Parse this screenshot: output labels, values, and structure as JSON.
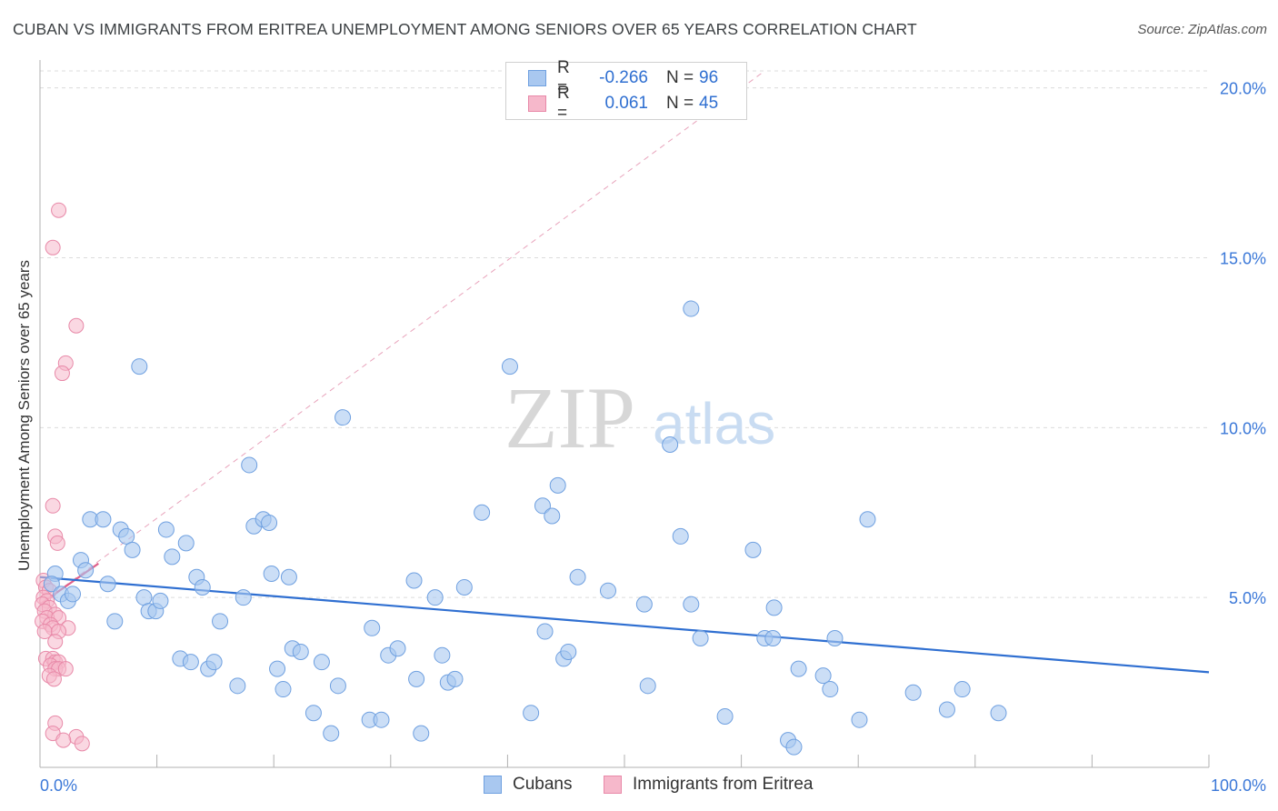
{
  "title": "CUBAN VS IMMIGRANTS FROM ERITREA UNEMPLOYMENT AMONG SENIORS OVER 65 YEARS CORRELATION CHART",
  "source": "Source: ZipAtlas.com",
  "watermark": {
    "zip": "ZIP",
    "atlas": "atlas"
  },
  "colors": {
    "cubans_fill": "#a9c8f0",
    "cubans_stroke": "#6fa0e0",
    "cubans_line": "#2f6fd1",
    "eritrea_fill": "#f6b8cb",
    "eritrea_stroke": "#e889a8",
    "eritrea_line": "#e0608a",
    "axis_text": "#3b78d8",
    "grid": "#dcdcdc"
  },
  "legend": {
    "rows": [
      {
        "r_label": "R =",
        "r_value": "-0.266",
        "n_label": "N =",
        "n_value": "96"
      },
      {
        "r_label": "R =",
        "r_value": "0.061",
        "n_label": "N =",
        "n_value": "45"
      }
    ]
  },
  "bottom_legend": {
    "cubans": "Cubans",
    "eritrea": "Immigrants from Eritrea"
  },
  "chart_data": {
    "type": "scatter",
    "xlabel": "",
    "ylabel": "Unemployment Among Seniors over 65 years",
    "xlim": [
      0,
      100
    ],
    "ylim": [
      0,
      20.5
    ],
    "x_tick_labels": [
      "0.0%",
      "100.0%"
    ],
    "y_ticks": [
      5,
      10,
      15,
      20
    ],
    "y_tick_labels": [
      "5.0%",
      "10.0%",
      "15.0%",
      "20.0%"
    ],
    "grid": true,
    "legend_position": "top-center",
    "series": [
      {
        "name": "Cubans",
        "trend": {
          "x": [
            0,
            100
          ],
          "y": [
            5.6,
            2.8
          ]
        },
        "points": [
          [
            1.3,
            5.7
          ],
          [
            1.0,
            5.4
          ],
          [
            1.8,
            5.1
          ],
          [
            2.4,
            4.9
          ],
          [
            2.8,
            5.1
          ],
          [
            3.5,
            6.1
          ],
          [
            3.9,
            5.8
          ],
          [
            4.3,
            7.3
          ],
          [
            5.4,
            7.3
          ],
          [
            5.8,
            5.4
          ],
          [
            6.4,
            4.3
          ],
          [
            6.9,
            7.0
          ],
          [
            7.4,
            6.8
          ],
          [
            7.9,
            6.4
          ],
          [
            8.5,
            11.8
          ],
          [
            8.9,
            5.0
          ],
          [
            9.3,
            4.6
          ],
          [
            9.9,
            4.6
          ],
          [
            10.3,
            4.9
          ],
          [
            10.8,
            7.0
          ],
          [
            11.3,
            6.2
          ],
          [
            12.0,
            3.2
          ],
          [
            12.5,
            6.6
          ],
          [
            12.9,
            3.1
          ],
          [
            13.4,
            5.6
          ],
          [
            13.9,
            5.3
          ],
          [
            14.4,
            2.9
          ],
          [
            14.9,
            3.1
          ],
          [
            15.4,
            4.3
          ],
          [
            16.9,
            2.4
          ],
          [
            17.4,
            5.0
          ],
          [
            17.9,
            8.9
          ],
          [
            18.3,
            7.1
          ],
          [
            19.1,
            7.3
          ],
          [
            19.6,
            7.2
          ],
          [
            19.8,
            5.7
          ],
          [
            20.3,
            2.9
          ],
          [
            20.8,
            2.3
          ],
          [
            21.3,
            5.6
          ],
          [
            21.6,
            3.5
          ],
          [
            22.3,
            3.4
          ],
          [
            23.4,
            1.6
          ],
          [
            24.1,
            3.1
          ],
          [
            24.9,
            1.0
          ],
          [
            25.5,
            2.4
          ],
          [
            25.9,
            10.3
          ],
          [
            28.2,
            1.4
          ],
          [
            28.4,
            4.1
          ],
          [
            29.2,
            1.4
          ],
          [
            29.8,
            3.3
          ],
          [
            30.6,
            3.5
          ],
          [
            32.0,
            5.5
          ],
          [
            32.2,
            2.6
          ],
          [
            32.6,
            1.0
          ],
          [
            33.8,
            5.0
          ],
          [
            34.4,
            3.3
          ],
          [
            34.9,
            2.5
          ],
          [
            35.5,
            2.6
          ],
          [
            36.3,
            5.3
          ],
          [
            37.8,
            7.5
          ],
          [
            40.2,
            11.8
          ],
          [
            42.0,
            1.6
          ],
          [
            43.0,
            7.7
          ],
          [
            43.2,
            4.0
          ],
          [
            43.8,
            7.4
          ],
          [
            44.3,
            8.3
          ],
          [
            44.8,
            3.2
          ],
          [
            45.2,
            3.4
          ],
          [
            46.0,
            5.6
          ],
          [
            48.6,
            5.2
          ],
          [
            51.7,
            4.8
          ],
          [
            52.0,
            2.4
          ],
          [
            53.9,
            9.5
          ],
          [
            54.8,
            6.8
          ],
          [
            55.7,
            4.8
          ],
          [
            56.5,
            3.8
          ],
          [
            55.7,
            13.5
          ],
          [
            58.6,
            1.5
          ],
          [
            61.0,
            6.4
          ],
          [
            62.0,
            3.8
          ],
          [
            62.7,
            3.8
          ],
          [
            62.8,
            4.7
          ],
          [
            64.0,
            0.8
          ],
          [
            64.5,
            0.6
          ],
          [
            64.9,
            2.9
          ],
          [
            67.0,
            2.7
          ],
          [
            67.6,
            2.3
          ],
          [
            68.0,
            3.8
          ],
          [
            70.1,
            1.4
          ],
          [
            70.8,
            7.3
          ],
          [
            74.7,
            2.2
          ],
          [
            77.6,
            1.7
          ],
          [
            78.9,
            2.3
          ],
          [
            82.0,
            1.6
          ]
        ]
      },
      {
        "name": "Immigrants from Eritrea",
        "trend": {
          "x": [
            0,
            5
          ],
          "y": [
            4.8,
            6.0
          ]
        },
        "trend_extended": {
          "x": [
            0,
            62
          ],
          "y": [
            4.8,
            20.5
          ]
        },
        "points": [
          [
            1.6,
            16.4
          ],
          [
            1.1,
            15.3
          ],
          [
            3.1,
            13.0
          ],
          [
            2.2,
            11.9
          ],
          [
            1.9,
            11.6
          ],
          [
            1.1,
            7.7
          ],
          [
            1.3,
            6.8
          ],
          [
            1.5,
            6.6
          ],
          [
            0.3,
            5.5
          ],
          [
            0.5,
            5.3
          ],
          [
            0.8,
            5.2
          ],
          [
            0.3,
            5.0
          ],
          [
            0.6,
            4.9
          ],
          [
            0.2,
            4.8
          ],
          [
            0.8,
            4.7
          ],
          [
            0.4,
            4.6
          ],
          [
            1.3,
            4.5
          ],
          [
            0.6,
            4.4
          ],
          [
            1.6,
            4.4
          ],
          [
            0.2,
            4.3
          ],
          [
            0.9,
            4.2
          ],
          [
            1.1,
            4.1
          ],
          [
            2.4,
            4.1
          ],
          [
            0.4,
            4.0
          ],
          [
            1.6,
            4.0
          ],
          [
            1.3,
            3.7
          ],
          [
            0.5,
            3.2
          ],
          [
            1.1,
            3.2
          ],
          [
            1.3,
            3.1
          ],
          [
            1.6,
            3.1
          ],
          [
            0.9,
            3.0
          ],
          [
            1.3,
            2.9
          ],
          [
            1.6,
            2.9
          ],
          [
            2.2,
            2.9
          ],
          [
            0.8,
            2.7
          ],
          [
            1.2,
            2.6
          ],
          [
            1.3,
            1.3
          ],
          [
            1.1,
            1.0
          ],
          [
            3.1,
            0.9
          ],
          [
            2.0,
            0.8
          ],
          [
            3.6,
            0.7
          ]
        ]
      }
    ]
  }
}
